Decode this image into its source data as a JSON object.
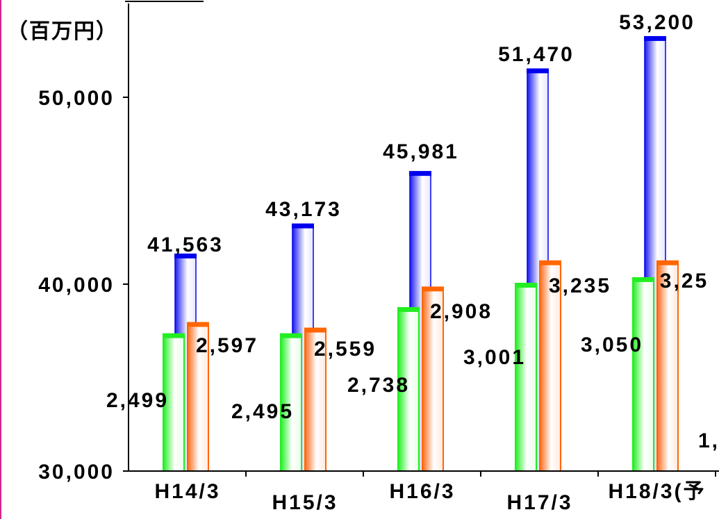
{
  "chart_data": {
    "type": "bar",
    "unit_label": "（百万円）",
    "categories": [
      "H14/3",
      "H15/3",
      "H16/3",
      "H17/3",
      "H18/3(予"
    ],
    "ylim": [
      30000,
      55000
    ],
    "yticks": [
      {
        "value": 30000,
        "label": "30,000"
      },
      {
        "value": 40000,
        "label": "40,000"
      },
      {
        "value": 50000,
        "label": "50,000"
      }
    ],
    "series": [
      {
        "color": "#22ee22",
        "values": [
          37300,
          37300,
          38700,
          40000,
          40300
        ],
        "labels": [
          "2,499",
          "2,495",
          "2,738",
          "3,001",
          "3,050"
        ]
      },
      {
        "color": "#ff6600",
        "values": [
          37900,
          37600,
          39800,
          41200,
          41200
        ],
        "labels": [
          "2,597",
          "2,559",
          "2,908",
          "3,235",
          "3,25"
        ]
      },
      {
        "color": "#0000ee",
        "values": [
          41563,
          43173,
          45981,
          51470,
          53200
        ],
        "labels": [
          "41,563",
          "43,173",
          "45,981",
          "51,470",
          "53,200"
        ]
      }
    ],
    "partial_label": "1,",
    "grid": false
  }
}
